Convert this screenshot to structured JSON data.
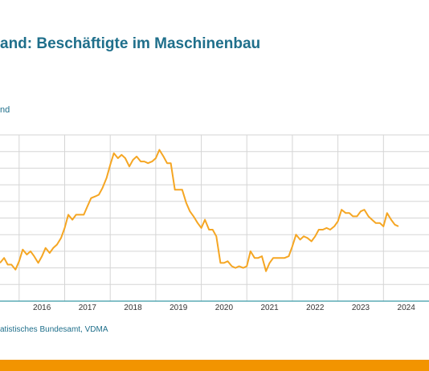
{
  "header": {
    "title": "and: Beschäftigte im Maschinenbau",
    "unit_label": "nd"
  },
  "footer": {
    "source": "atistisches Bundesamt, VDMA"
  },
  "colors": {
    "line": "#f5a623",
    "grid": "#d5d5d5",
    "axis": "#3a9aa8",
    "title": "#1f6f8b",
    "footer_bar": "#f29400"
  },
  "chart_data": {
    "type": "line",
    "title": "",
    "xlabel": "",
    "ylabel": "",
    "grid": true,
    "legend": "none",
    "ylim": [
      0,
      100
    ],
    "xlim": [
      2015.58,
      2025.0
    ],
    "x_ticks": [
      {
        "label": "2016",
        "x": 2016.0
      },
      {
        "label": "2017",
        "x": 2017.0
      },
      {
        "label": "2018",
        "x": 2018.0
      },
      {
        "label": "2019",
        "x": 2019.0
      },
      {
        "label": "2020",
        "x": 2020.0
      },
      {
        "label": "2021",
        "x": 2021.0
      },
      {
        "label": "2022",
        "x": 2022.0
      },
      {
        "label": "2023",
        "x": 2023.0
      },
      {
        "label": "2024",
        "x": 2024.0
      }
    ],
    "y_gridlines": [
      10,
      20,
      30,
      40,
      50,
      60,
      70,
      80,
      90,
      100
    ],
    "series": [
      {
        "values": [
          [
            2015.58,
            23
          ],
          [
            2015.67,
            26
          ],
          [
            2015.75,
            22
          ],
          [
            2015.83,
            22
          ],
          [
            2015.92,
            19
          ],
          [
            2016.0,
            24
          ],
          [
            2016.08,
            31
          ],
          [
            2016.17,
            28
          ],
          [
            2016.25,
            30
          ],
          [
            2016.33,
            27
          ],
          [
            2016.42,
            23
          ],
          [
            2016.5,
            27
          ],
          [
            2016.58,
            32
          ],
          [
            2016.67,
            29
          ],
          [
            2016.75,
            32
          ],
          [
            2016.83,
            34
          ],
          [
            2016.92,
            38
          ],
          [
            2017.0,
            44
          ],
          [
            2017.08,
            52
          ],
          [
            2017.17,
            49
          ],
          [
            2017.25,
            52
          ],
          [
            2017.33,
            52
          ],
          [
            2017.42,
            52
          ],
          [
            2017.5,
            57
          ],
          [
            2017.58,
            62
          ],
          [
            2017.67,
            63
          ],
          [
            2017.75,
            64
          ],
          [
            2017.83,
            68
          ],
          [
            2017.92,
            74
          ],
          [
            2018.0,
            82
          ],
          [
            2018.08,
            89
          ],
          [
            2018.17,
            86
          ],
          [
            2018.25,
            88
          ],
          [
            2018.33,
            86
          ],
          [
            2018.42,
            81
          ],
          [
            2018.5,
            85
          ],
          [
            2018.58,
            87
          ],
          [
            2018.67,
            84
          ],
          [
            2018.75,
            84
          ],
          [
            2018.83,
            83
          ],
          [
            2018.92,
            84
          ],
          [
            2019.0,
            86
          ],
          [
            2019.08,
            91
          ],
          [
            2019.17,
            87
          ],
          [
            2019.25,
            83
          ],
          [
            2019.33,
            83
          ],
          [
            2019.42,
            67
          ],
          [
            2019.5,
            67
          ],
          [
            2019.58,
            67
          ],
          [
            2019.67,
            59
          ],
          [
            2019.75,
            54
          ],
          [
            2019.83,
            51
          ],
          [
            2019.92,
            47
          ],
          [
            2020.0,
            44
          ],
          [
            2020.08,
            49
          ],
          [
            2020.17,
            43
          ],
          [
            2020.25,
            43
          ],
          [
            2020.33,
            39
          ],
          [
            2020.42,
            23
          ],
          [
            2020.5,
            23
          ],
          [
            2020.58,
            24
          ],
          [
            2020.67,
            21
          ],
          [
            2020.75,
            20
          ],
          [
            2020.83,
            21
          ],
          [
            2020.92,
            20
          ],
          [
            2021.0,
            21
          ],
          [
            2021.08,
            30
          ],
          [
            2021.17,
            26
          ],
          [
            2021.25,
            26
          ],
          [
            2021.33,
            27
          ],
          [
            2021.42,
            18
          ],
          [
            2021.5,
            23
          ],
          [
            2021.58,
            26
          ],
          [
            2021.67,
            26
          ],
          [
            2021.75,
            26
          ],
          [
            2021.83,
            26
          ],
          [
            2021.92,
            27
          ],
          [
            2022.0,
            33
          ],
          [
            2022.08,
            40
          ],
          [
            2022.17,
            37
          ],
          [
            2022.25,
            39
          ],
          [
            2022.33,
            38
          ],
          [
            2022.42,
            36
          ],
          [
            2022.5,
            39
          ],
          [
            2022.58,
            43
          ],
          [
            2022.67,
            43
          ],
          [
            2022.75,
            44
          ],
          [
            2022.83,
            43
          ],
          [
            2022.92,
            45
          ],
          [
            2023.0,
            48
          ],
          [
            2023.08,
            55
          ],
          [
            2023.17,
            53
          ],
          [
            2023.25,
            53
          ],
          [
            2023.33,
            51
          ],
          [
            2023.42,
            51
          ],
          [
            2023.5,
            54
          ],
          [
            2023.58,
            55
          ],
          [
            2023.67,
            51
          ],
          [
            2023.75,
            49
          ],
          [
            2023.83,
            47
          ],
          [
            2023.92,
            47
          ],
          [
            2024.0,
            45
          ],
          [
            2024.08,
            53
          ],
          [
            2024.17,
            49
          ],
          [
            2024.25,
            46
          ],
          [
            2024.33,
            45
          ]
        ]
      }
    ]
  }
}
